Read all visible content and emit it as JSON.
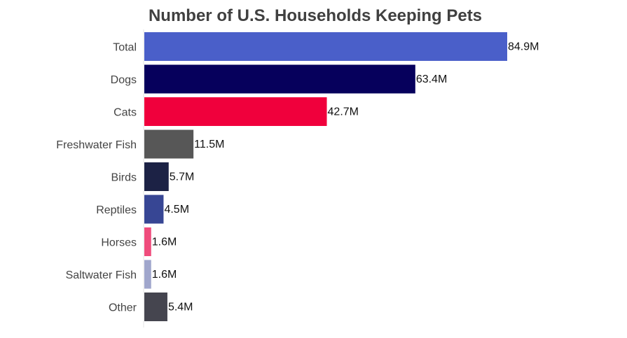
{
  "chart_data": {
    "type": "bar",
    "orientation": "horizontal",
    "title": "Number of U.S. Households Keeping Pets",
    "xlabel": "",
    "ylabel": "",
    "unit_suffix": "M",
    "categories": [
      "Total",
      "Dogs",
      "Cats",
      "Freshwater Fish",
      "Birds",
      "Reptiles",
      "Horses",
      "Saltwater Fish",
      "Other"
    ],
    "values": [
      84.9,
      63.4,
      42.7,
      11.5,
      5.7,
      4.5,
      1.6,
      1.6,
      5.4
    ],
    "data_labels": [
      "84.9M",
      "63.4M",
      "42.7M",
      "11.5M",
      "5.7M",
      "4.5M",
      "1.6M",
      "1.6M",
      "5.4M"
    ],
    "colors": [
      "#4a5fc9",
      "#06005c",
      "#f0003c",
      "#575757",
      "#1c2245",
      "#374694",
      "#ef4c7c",
      "#a0a6cc",
      "#45454f"
    ],
    "xlim": [
      0,
      85
    ],
    "grid": false,
    "legend": "none"
  }
}
